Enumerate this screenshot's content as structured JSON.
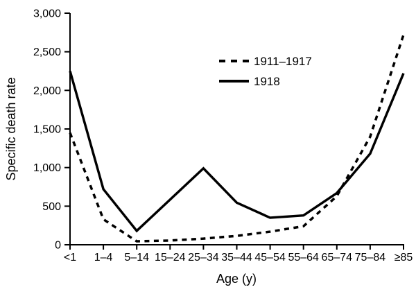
{
  "page": {
    "background": "#ffffff",
    "foreground": "#000000"
  },
  "chart_data": {
    "type": "line",
    "title": "",
    "xlabel": "Age (y)",
    "ylabel": "Specific death rate",
    "categories": [
      "<1",
      "1–4",
      "5–14",
      "15–24",
      "25–34",
      "35–44",
      "45–54",
      "55–64",
      "65–74",
      "75–84",
      "≥85"
    ],
    "series": [
      {
        "name": "1911–1917",
        "line_style": "dashed",
        "color": "#000000",
        "values": [
          1450,
          330,
          45,
          55,
          80,
          115,
          170,
          240,
          630,
          1400,
          2720
        ]
      },
      {
        "name": "1918",
        "line_style": "solid",
        "color": "#000000",
        "values": [
          2250,
          720,
          180,
          585,
          990,
          545,
          350,
          380,
          670,
          1180,
          2220
        ]
      }
    ],
    "ylim": [
      0,
      3000
    ],
    "ytick_values": [
      0,
      500,
      1000,
      1500,
      2000,
      2500,
      3000
    ],
    "ytick_labels": [
      "0",
      "500",
      "1,000",
      "1,500",
      "2,000",
      "2,500",
      "3,000"
    ],
    "grid": false,
    "legend_position": "upper-center",
    "line_color": "#000000"
  }
}
